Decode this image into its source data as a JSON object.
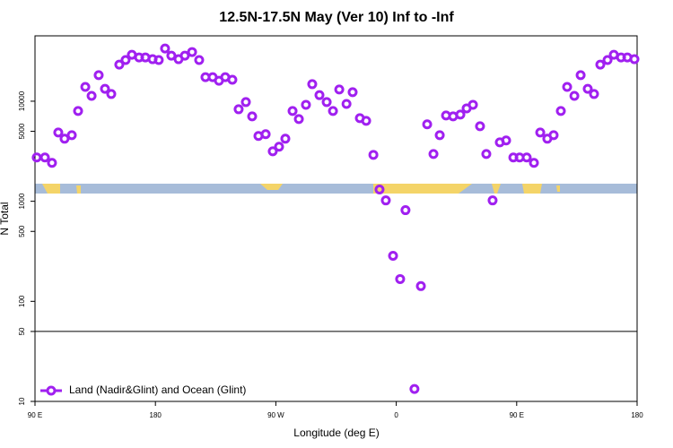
{
  "chart_data": {
    "type": "scatter",
    "title": "12.5N-17.5N May (Ver 10)   Inf to -Inf",
    "x_label": "Longitude (deg E)",
    "y_label": "N Total",
    "log_y": true,
    "xlim": [
      90,
      540
    ],
    "ylim": [
      10,
      45000
    ],
    "xticks": [
      {
        "value": 90,
        "label": "90 E"
      },
      180,
      {
        "value": 270,
        "label": "90 W"
      },
      {
        "value": 360,
        "label": "0"
      },
      {
        "value": 450,
        "label": "90 E"
      },
      {
        "value": 540,
        "label": "180"
      }
    ],
    "yticks": [
      10,
      50,
      100,
      500,
      1000,
      5000,
      10000
    ],
    "hline": 50,
    "legend_position": "bottom-left",
    "series": [
      {
        "name": "Land (Nadir&Glint) and Ocean (Glint)",
        "color": "#a020f0",
        "x": [
          91.3,
          97.4,
          102.7,
          107.4,
          112.1,
          117.5,
          122.2,
          127.6,
          132.3,
          137.6,
          142.3,
          147.0,
          153.0,
          157.7,
          162.4,
          167.8,
          172.5,
          177.9,
          182.5,
          187.2,
          191.9,
          197.3,
          202.0,
          207.4,
          212.7,
          217.4,
          222.8,
          227.5,
          232.2,
          237.5,
          242.2,
          247.6,
          252.3,
          257.0,
          262.4,
          267.7,
          272.4,
          277.1,
          282.5,
          287.2,
          292.5,
          297.2,
          302.6,
          308.0,
          312.7,
          317.4,
          322.8,
          327.4,
          332.8,
          337.5,
          342.9,
          347.5,
          352.2,
          357.6,
          362.9,
          366.9,
          373.6,
          378.4,
          383.1,
          387.8,
          392.5,
          397.2,
          402.5,
          407.9,
          412.6,
          417.3,
          422.6,
          427.3,
          432.0,
          437.4,
          442.1,
          447.5,
          452.2,
          457.5,
          462.9,
          467.6,
          472.9,
          477.6,
          483.0,
          487.7,
          493.1,
          497.8,
          503.1,
          507.8,
          512.5,
          517.9,
          522.6,
          528.0,
          532.7,
          538.0
        ],
        "values": [
          2740,
          2740,
          2420,
          4870,
          4220,
          4580,
          7980,
          13900,
          11300,
          18200,
          13300,
          11800,
          23200,
          25800,
          29100,
          27400,
          27400,
          26300,
          25800,
          33600,
          28500,
          26300,
          28500,
          31000,
          25800,
          17400,
          17400,
          16000,
          17400,
          16400,
          8310,
          9800,
          7050,
          4490,
          4680,
          3160,
          3510,
          4220,
          7980,
          6630,
          9210,
          14800,
          11500,
          9800,
          7980,
          13100,
          9400,
          12300,
          6770,
          6370,
          2910,
          1310,
          1020,
          285,
          167,
          815,
          13.3,
          142,
          5870,
          2970,
          4580,
          7200,
          7050,
          7350,
          8480,
          9210,
          5620,
          2970,
          1020,
          3880,
          4050,
          2740,
          2740,
          2740,
          2420,
          4870,
          4220,
          4580,
          7980,
          13900,
          11300,
          18200,
          13300,
          11800,
          23200,
          25800,
          29100,
          27400,
          27400,
          26300
        ]
      }
    ]
  }
}
